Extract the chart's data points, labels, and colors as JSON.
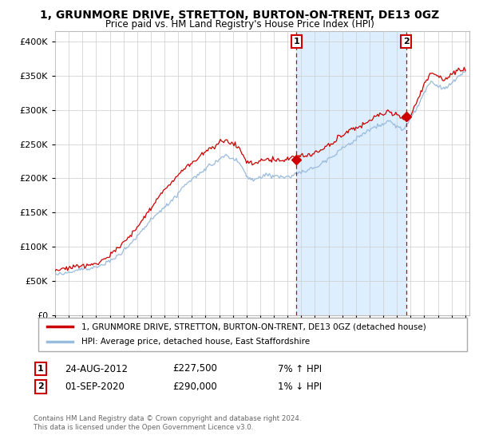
{
  "title": "1, GRUNMORE DRIVE, STRETTON, BURTON-ON-TRENT, DE13 0GZ",
  "subtitle": "Price paid vs. HM Land Registry's House Price Index (HPI)",
  "ylabel_ticks": [
    "£0",
    "£50K",
    "£100K",
    "£150K",
    "£200K",
    "£250K",
    "£300K",
    "£350K",
    "£400K"
  ],
  "ytick_values": [
    0,
    50000,
    100000,
    150000,
    200000,
    250000,
    300000,
    350000,
    400000
  ],
  "ylim": [
    0,
    415000
  ],
  "xlim_start": 1995.3,
  "xlim_end": 2025.3,
  "sale1_date": 2012.65,
  "sale1_price": 227500,
  "sale1_label": "1",
  "sale2_date": 2020.67,
  "sale2_price": 290000,
  "sale2_label": "2",
  "line_color_property": "#cc0000",
  "line_color_hpi": "#99bbdd",
  "background_color": "#ffffff",
  "shade_between_color": "#ddeeff",
  "grid_color": "#cccccc",
  "legend_label_property": "1, GRUNMORE DRIVE, STRETTON, BURTON-ON-TRENT, DE13 0GZ (detached house)",
  "legend_label_hpi": "HPI: Average price, detached house, East Staffordshire",
  "annotation1_date": "24-AUG-2012",
  "annotation1_price": "£227,500",
  "annotation1_hpi": "7% ↑ HPI",
  "annotation2_date": "01-SEP-2020",
  "annotation2_price": "£290,000",
  "annotation2_hpi": "1% ↓ HPI",
  "footer1": "Contains HM Land Registry data © Crown copyright and database right 2024.",
  "footer2": "This data is licensed under the Open Government Licence v3.0.",
  "xtick_years": [
    1995,
    1996,
    1997,
    1998,
    1999,
    2000,
    2001,
    2002,
    2003,
    2004,
    2005,
    2006,
    2007,
    2008,
    2009,
    2010,
    2011,
    2012,
    2013,
    2014,
    2015,
    2016,
    2017,
    2018,
    2019,
    2020,
    2021,
    2022,
    2023,
    2024,
    2025
  ]
}
